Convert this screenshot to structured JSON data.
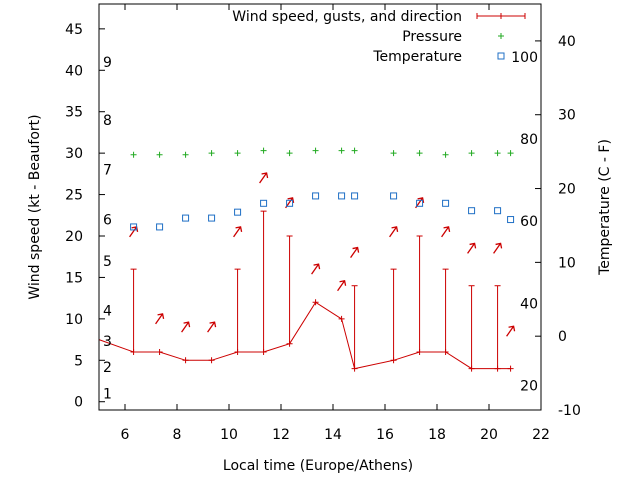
{
  "chart_data": {
    "type": "line",
    "title": "",
    "xlabel": "Local time (Europe/Athens)",
    "ylabel": "Wind speed (kt - Beaufort)",
    "y2label": "Temperature (C - F)",
    "xlim": [
      5,
      22
    ],
    "ylim": [
      -1,
      48
    ],
    "y2lim": [
      -10,
      45
    ],
    "x_ticks": [
      6,
      8,
      10,
      12,
      14,
      16,
      18,
      20,
      22
    ],
    "y_ticks": [
      0,
      5,
      10,
      15,
      20,
      25,
      30,
      35,
      40,
      45
    ],
    "y2_ticks": [
      -10,
      0,
      10,
      20,
      30,
      40
    ],
    "beaufort_labels": [
      {
        "label": "1",
        "y": 1
      },
      {
        "label": "2",
        "y": 4.2
      },
      {
        "label": "3",
        "y": 7.3
      },
      {
        "label": "4",
        "y": 11
      },
      {
        "label": "5",
        "y": 17
      },
      {
        "label": "6",
        "y": 22
      },
      {
        "label": "7",
        "y": 28
      },
      {
        "label": "8",
        "y": 34
      },
      {
        "label": "9",
        "y": 41
      }
    ],
    "fahrenheit_labels": [
      {
        "label": "20",
        "y2": -6.7
      },
      {
        "label": "40",
        "y2": 4.4
      },
      {
        "label": "60",
        "y2": 15.6
      },
      {
        "label": "80",
        "y2": 26.7
      },
      {
        "label": "100",
        "y2": 37.8
      }
    ],
    "legend_position": "top-right",
    "colors": {
      "wind": "#cc0000",
      "pressure": "#22aa22",
      "temperature": "#1f6fc5"
    },
    "series": [
      {
        "name": "Wind speed, gusts, and direction",
        "x": [
          5,
          6.33,
          7.33,
          8.33,
          9.33,
          10.33,
          11.33,
          12.33,
          13.33,
          14.33,
          14.83,
          16.33,
          17.33,
          18.33,
          19.33,
          20.33,
          20.83
        ],
        "speed": [
          7.5,
          6,
          6,
          5,
          5,
          6,
          6,
          7,
          12,
          10,
          4,
          5,
          6,
          6,
          4,
          4,
          4
        ],
        "gusts": [
          null,
          16,
          null,
          null,
          null,
          16,
          23,
          20,
          null,
          null,
          14,
          16,
          20,
          16,
          14,
          14,
          null
        ],
        "arrow_y": [
          null,
          20.5,
          10,
          9,
          9,
          20.5,
          27,
          24,
          16,
          14,
          18,
          20.5,
          24,
          20.5,
          18.5,
          18.5,
          8.5
        ]
      },
      {
        "name": "Pressure",
        "x": [
          6.33,
          7.33,
          8.33,
          9.33,
          10.33,
          11.33,
          12.33,
          13.33,
          14.33,
          14.83,
          16.33,
          17.33,
          18.33,
          19.33,
          20.33,
          20.83
        ],
        "values": [
          29.8,
          29.8,
          29.8,
          30,
          30,
          30.3,
          30,
          30.3,
          30.3,
          30.3,
          30,
          30,
          29.8,
          30,
          30,
          30
        ]
      },
      {
        "name": "Temperature",
        "x": [
          6.33,
          7.33,
          8.33,
          9.33,
          10.33,
          11.33,
          12.33,
          13.33,
          14.33,
          14.83,
          16.33,
          17.33,
          18.33,
          19.33,
          20.33,
          20.83
        ],
        "values": [
          14.8,
          14.8,
          16,
          16,
          16.8,
          18,
          18,
          19,
          19,
          19,
          19,
          18,
          18,
          17,
          17,
          15.8
        ]
      }
    ]
  }
}
